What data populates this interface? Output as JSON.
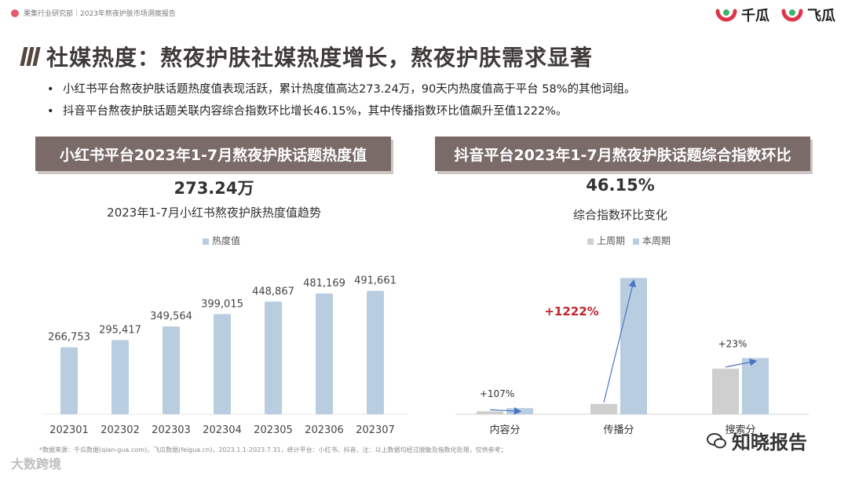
{
  "header": {
    "doc_label": "果集行业研究部｜2023年熬夜护肤市场洞察报告",
    "brand_left": "千瓜",
    "brand_right": "飞瓜"
  },
  "title": "社媒热度：熬夜护肤社媒热度增长，熬夜护肤需求显著",
  "bullets": [
    "小红书平台熬夜护肤话题热度值表现活跃，累计热度值高达273.24万，90天内热度值高于平台 58%的其他词组。",
    "抖音平台熬夜护肤话题关联内容综合指数环比增长46.15%，其中传播指数环比值飙升至值1222%。"
  ],
  "left_panel": {
    "header": "小红书平台2023年1-7月熬夜护肤话题热度值",
    "big_value": "273.24万"
  },
  "right_panel": {
    "header": "抖音平台2023年1-7月熬夜护肤话题综合指数环比",
    "big_value": "46.15%"
  },
  "colors": {
    "bar_blue": "#b8cde0",
    "bar_gray": "#cfcfcf",
    "header_bg": "#7a6b68",
    "arrow": "#4a74c4",
    "highlight_red": "#c0262d"
  },
  "chart_data": [
    {
      "type": "bar",
      "title": "2023年1-7月小红书熬夜护肤热度值趋势",
      "categories": [
        "202301",
        "202302",
        "202303",
        "202304",
        "202305",
        "202306",
        "202307"
      ],
      "series": [
        {
          "name": "热度值",
          "values": [
            266753,
            295417,
            349564,
            399015,
            448867,
            481169,
            491661
          ]
        }
      ],
      "data_labels": [
        "266,753",
        "295,417",
        "349,564",
        "399,015",
        "448,867",
        "481,169",
        "491,661"
      ],
      "legend": "top"
    },
    {
      "type": "bar",
      "title": "综合指数环比变化",
      "categories": [
        "内容分",
        "传播分",
        "搜索分"
      ],
      "series": [
        {
          "name": "上周期",
          "values": [
            1,
            3.5,
            15.5
          ]
        },
        {
          "name": "本周期",
          "values": [
            2.07,
            46.3,
            19.1
          ]
        }
      ],
      "annotations": [
        "+107%",
        "+1222%",
        "+23%"
      ],
      "legend": "top"
    }
  ],
  "footnote": "*数据来源：千瓜数据(qian-gua.com)，飞瓜数据(feigua.cn)，2023.1.1-2023.7.31，统计平台：小红书、抖音，注：以上数据均经过脱敏及指数化处理，仅供参考；",
  "watermark_left": "大数跨境",
  "watermark_right": "知晓报告"
}
